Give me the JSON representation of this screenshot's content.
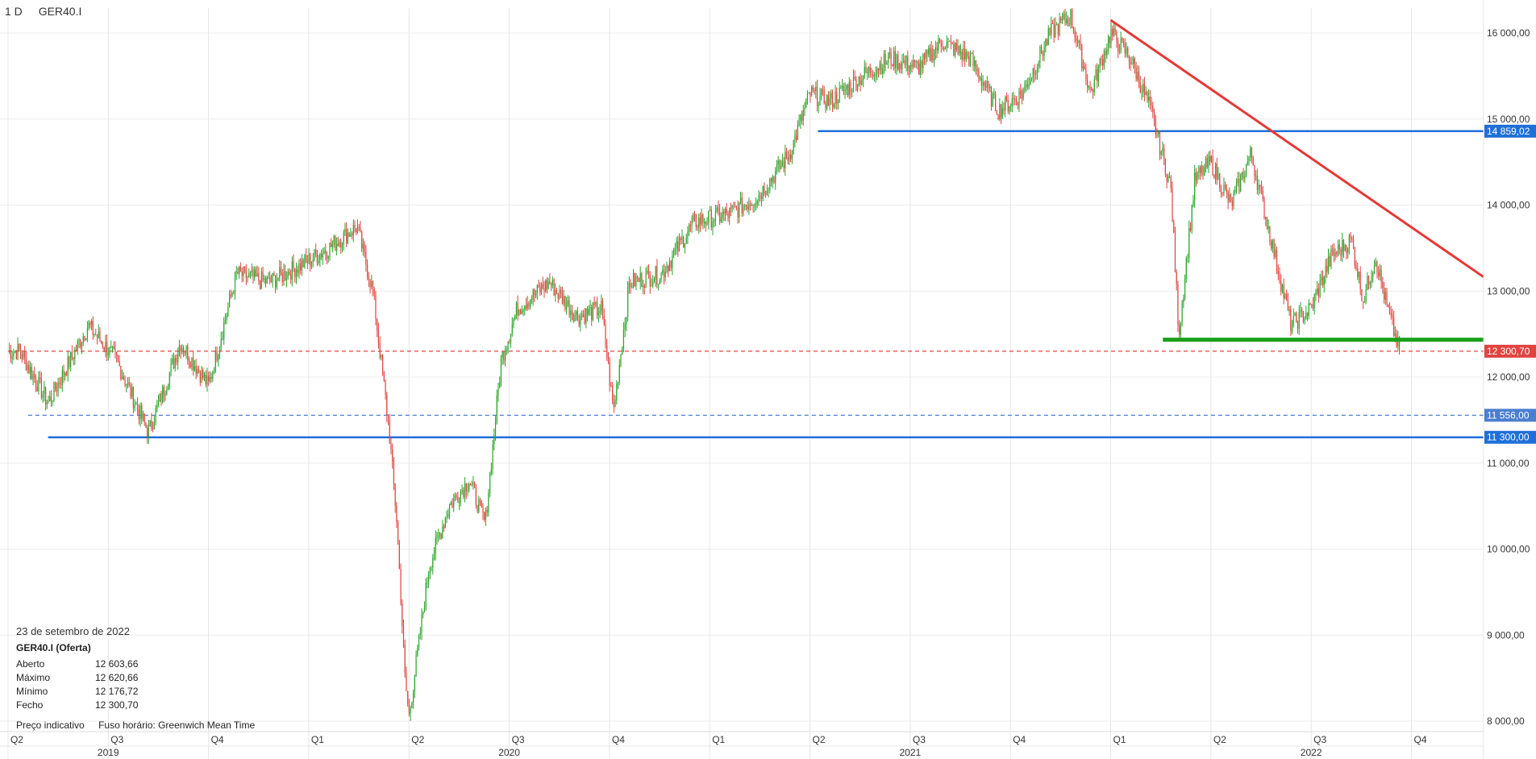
{
  "header": {
    "timeframe": "1 D",
    "symbol": "GER40.I"
  },
  "info": {
    "date": "23 de setembro de 2022",
    "instrument": "GER40.I (Oferta)",
    "rows": [
      {
        "label": "Aberto",
        "value": "12 603,66"
      },
      {
        "label": "Máximo",
        "value": "12 620,66"
      },
      {
        "label": "Mínimo",
        "value": "12 176,72"
      },
      {
        "label": "Fecho",
        "value": "12 300,70"
      }
    ]
  },
  "footer": {
    "price_note": "Preço indicativo",
    "timezone_note": "Fuso horário: Greenwich Mean Time"
  },
  "colors": {
    "up": "#2aa52a",
    "down": "#e0443f",
    "blue_line": "#1f6fd8",
    "trend": "#e53935",
    "support": "#1aa01a"
  },
  "chart_data": {
    "type": "candlestick",
    "x_range": [
      "2019-Q2",
      "2022-Q4"
    ],
    "y_range": [
      7950,
      16400
    ],
    "y_ticks": [
      {
        "v": 16000,
        "label": "16 000,00"
      },
      {
        "v": 15000,
        "label": "15 000,00"
      },
      {
        "v": 14000,
        "label": "14 000,00"
      },
      {
        "v": 13000,
        "label": "13 000,00"
      },
      {
        "v": 12000,
        "label": "12 000,00"
      },
      {
        "v": 11000,
        "label": "11 000,00"
      },
      {
        "v": 10000,
        "label": "10 000,00"
      },
      {
        "v": 9000,
        "label": "9 000,00"
      },
      {
        "v": 8000,
        "label": "8 000,00"
      }
    ],
    "quarters": [
      {
        "t": 2019.25,
        "label": "Q2"
      },
      {
        "t": 2019.5,
        "label": "Q3"
      },
      {
        "t": 2019.75,
        "label": "Q4"
      },
      {
        "t": 2020.0,
        "label": "Q1"
      },
      {
        "t": 2020.25,
        "label": "Q2"
      },
      {
        "t": 2020.5,
        "label": "Q3"
      },
      {
        "t": 2020.75,
        "label": "Q4"
      },
      {
        "t": 2021.0,
        "label": "Q1"
      },
      {
        "t": 2021.25,
        "label": "Q2"
      },
      {
        "t": 2021.5,
        "label": "Q3"
      },
      {
        "t": 2021.75,
        "label": "Q4"
      },
      {
        "t": 2022.0,
        "label": "Q1"
      },
      {
        "t": 2022.25,
        "label": "Q2"
      },
      {
        "t": 2022.5,
        "label": "Q3"
      },
      {
        "t": 2022.75,
        "label": "Q4"
      }
    ],
    "years": [
      {
        "t": 2019.5,
        "label": "2019"
      },
      {
        "t": 2020.5,
        "label": "2020"
      },
      {
        "t": 2021.5,
        "label": "2021"
      },
      {
        "t": 2022.5,
        "label": "2022"
      }
    ],
    "price_path": [
      [
        2019.28,
        12300
      ],
      [
        2019.35,
        11700
      ],
      [
        2019.45,
        12600
      ],
      [
        2019.52,
        12200
      ],
      [
        2019.6,
        11350
      ],
      [
        2019.68,
        12400
      ],
      [
        2019.75,
        11900
      ],
      [
        2019.82,
        13200
      ],
      [
        2019.9,
        13100
      ],
      [
        2019.98,
        13300
      ],
      [
        2020.05,
        13500
      ],
      [
        2020.12,
        13750
      ],
      [
        2020.16,
        13000
      ],
      [
        2020.2,
        11400
      ],
      [
        2020.22,
        10300
      ],
      [
        2020.24,
        8500
      ],
      [
        2020.25,
        8050
      ],
      [
        2020.3,
        9800
      ],
      [
        2020.35,
        10500
      ],
      [
        2020.4,
        10800
      ],
      [
        2020.44,
        10300
      ],
      [
        2020.48,
        12200
      ],
      [
        2020.52,
        12800
      ],
      [
        2020.6,
        13100
      ],
      [
        2020.67,
        12700
      ],
      [
        2020.73,
        12800
      ],
      [
        2020.76,
        11600
      ],
      [
        2020.8,
        13100
      ],
      [
        2020.88,
        13200
      ],
      [
        2020.96,
        13800
      ],
      [
        2021.05,
        13900
      ],
      [
        2021.12,
        14100
      ],
      [
        2021.2,
        14600
      ],
      [
        2021.25,
        15300
      ],
      [
        2021.3,
        15200
      ],
      [
        2021.38,
        15500
      ],
      [
        2021.45,
        15700
      ],
      [
        2021.52,
        15600
      ],
      [
        2021.58,
        15900
      ],
      [
        2021.65,
        15700
      ],
      [
        2021.72,
        15100
      ],
      [
        2021.78,
        15300
      ],
      [
        2021.85,
        16000
      ],
      [
        2021.9,
        16200
      ],
      [
        2021.95,
        15300
      ],
      [
        2022.0,
        16000
      ],
      [
        2022.05,
        15700
      ],
      [
        2022.1,
        15100
      ],
      [
        2022.15,
        14200
      ],
      [
        2022.17,
        12500
      ],
      [
        2022.21,
        14300
      ],
      [
        2022.25,
        14500
      ],
      [
        2022.3,
        14000
      ],
      [
        2022.35,
        14600
      ],
      [
        2022.4,
        13600
      ],
      [
        2022.45,
        12600
      ],
      [
        2022.5,
        12800
      ],
      [
        2022.55,
        13400
      ],
      [
        2022.6,
        13600
      ],
      [
        2022.63,
        12900
      ],
      [
        2022.66,
        13400
      ],
      [
        2022.69,
        12800
      ],
      [
        2022.72,
        12300
      ]
    ],
    "horizontal_lines": [
      {
        "price": 14859.02,
        "label": "14 859,02",
        "style": "solid",
        "color": "#1f6fd8",
        "from": 2021.27
      },
      {
        "price": 12300.7,
        "label": "12 300,70",
        "style": "dashed",
        "color": "#e0443f",
        "from": 2019.25
      },
      {
        "price": 11556.0,
        "label": "11 556,00",
        "style": "dashed",
        "color": "#4a7fd0",
        "from": 2019.3
      },
      {
        "price": 11300.0,
        "label": "11 300,00",
        "style": "solid",
        "color": "#1f6fd8",
        "from": 2019.35
      }
    ],
    "support_line": {
      "price": 12435,
      "from": 2022.13,
      "to": 2022.93
    },
    "trend_line": {
      "from": [
        2022.0,
        16150
      ],
      "to": [
        2022.95,
        13100
      ]
    },
    "last_price": 12300.7
  }
}
